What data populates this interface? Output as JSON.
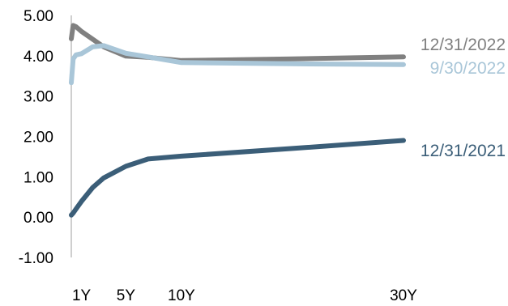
{
  "chart_data": {
    "type": "line",
    "title": "",
    "xlabel": "",
    "ylabel": "",
    "xlim": [
      0.08,
      30
    ],
    "ylim": [
      -1.0,
      5.0
    ],
    "yticks": [
      -1.0,
      0.0,
      1.0,
      2.0,
      3.0,
      4.0,
      5.0
    ],
    "ytick_labels": [
      "-1.00",
      "0.00",
      "1.00",
      "2.00",
      "3.00",
      "4.00",
      "5.00"
    ],
    "xticks": [
      1,
      5,
      10,
      30
    ],
    "xtick_labels": [
      "1Y",
      "5Y",
      "10Y",
      "30Y"
    ],
    "grid": false,
    "legend": "inline-right",
    "series": [
      {
        "name": "12/31/2022",
        "color": "#808080",
        "x": [
          0.08,
          0.25,
          0.5,
          1,
          2,
          3,
          5,
          7,
          10,
          20,
          30
        ],
        "y": [
          4.42,
          4.75,
          4.72,
          4.6,
          4.41,
          4.22,
          3.99,
          3.96,
          3.88,
          3.92,
          3.97
        ]
      },
      {
        "name": "9/30/2022",
        "color": "#a9c6d8",
        "x": [
          0.08,
          0.25,
          0.5,
          1,
          2,
          3,
          5,
          7,
          10,
          20,
          30
        ],
        "y": [
          3.33,
          3.92,
          4.02,
          4.05,
          4.22,
          4.25,
          4.06,
          3.97,
          3.83,
          3.8,
          3.78
        ]
      },
      {
        "name": "12/31/2021",
        "color": "#3b5e78",
        "x": [
          0.08,
          0.25,
          0.5,
          1,
          2,
          3,
          5,
          7,
          10,
          20,
          30
        ],
        "y": [
          0.05,
          0.1,
          0.2,
          0.39,
          0.73,
          0.97,
          1.26,
          1.44,
          1.51,
          1.7,
          1.9
        ]
      }
    ]
  }
}
